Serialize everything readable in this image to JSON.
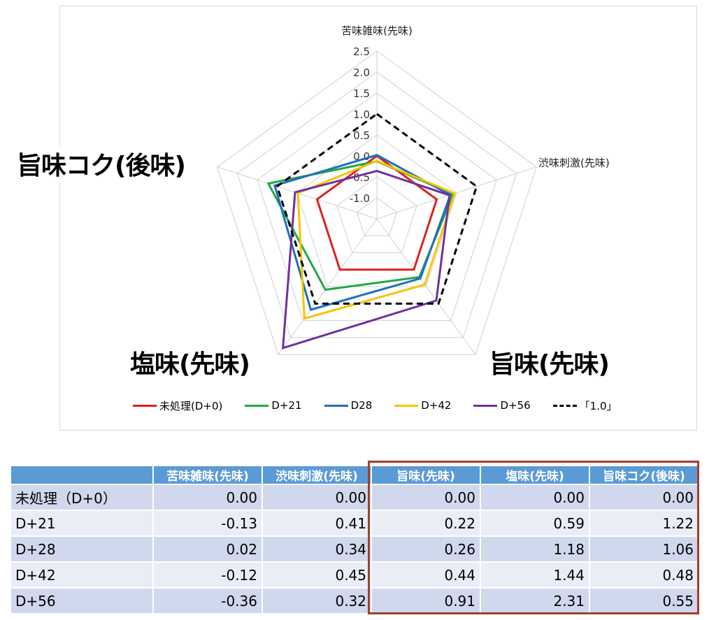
{
  "chart_data": {
    "type": "radar",
    "axes": [
      "苦味雑味(先味)",
      "渋味刺激(先味)",
      "旨味(先味)",
      "塩味(先味)",
      "旨味コク(後味)"
    ],
    "rlim": [
      -1.5,
      2.5
    ],
    "ticks": [
      "2.5",
      "2.0",
      "1.5",
      "1.0",
      "0.5",
      "0.0",
      "-0.5",
      "-1.0"
    ],
    "grid": true,
    "legend_position": "bottom",
    "series": [
      {
        "name": "未処理(D+0)",
        "color": "#e02020",
        "dashed": false,
        "values": [
          0.0,
          0.0,
          0.0,
          0.0,
          0.0
        ]
      },
      {
        "name": "D+21",
        "color": "#22a846",
        "dashed": false,
        "values": [
          -0.13,
          0.41,
          0.22,
          0.59,
          1.22
        ]
      },
      {
        "name": "D28",
        "color": "#1f6fbf",
        "dashed": false,
        "values": [
          0.02,
          0.34,
          0.26,
          1.18,
          1.06
        ]
      },
      {
        "name": "D+42",
        "color": "#f5c400",
        "dashed": false,
        "values": [
          -0.12,
          0.45,
          0.44,
          1.44,
          0.48
        ]
      },
      {
        "name": "D+56",
        "color": "#7030a0",
        "dashed": false,
        "values": [
          -0.36,
          0.32,
          0.91,
          2.31,
          0.55
        ]
      },
      {
        "name": "「1.0」",
        "color": "#000000",
        "dashed": true,
        "values": [
          1.0,
          1.0,
          1.0,
          1.0,
          1.0
        ]
      }
    ]
  },
  "table": {
    "headers": [
      "",
      "苦味雑味(先味)",
      "渋味刺激(先味)",
      "旨味(先味)",
      "塩味(先味)",
      "旨味コク(後味)"
    ],
    "rows": [
      {
        "label": "未処理（D+0）",
        "values": [
          "0.00",
          "0.00",
          "0.00",
          "0.00",
          "0.00"
        ]
      },
      {
        "label": "D+21",
        "values": [
          "-0.13",
          "0.41",
          "0.22",
          "0.59",
          "1.22"
        ]
      },
      {
        "label": "D+28",
        "values": [
          "0.02",
          "0.34",
          "0.26",
          "1.18",
          "1.06"
        ]
      },
      {
        "label": "D+42",
        "values": [
          "-0.12",
          "0.45",
          "0.44",
          "1.44",
          "0.48"
        ]
      },
      {
        "label": "D+56",
        "values": [
          "-0.36",
          "0.32",
          "0.91",
          "2.31",
          "0.55"
        ]
      }
    ]
  }
}
